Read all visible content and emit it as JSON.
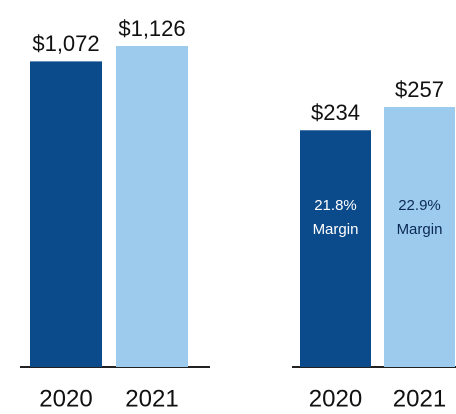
{
  "chart_data": [
    {
      "type": "bar",
      "categories": [
        "2020",
        "2021"
      ],
      "values": [
        1072,
        1126
      ],
      "value_labels": [
        "$1,072",
        "$1,126"
      ],
      "colors": [
        "#0b4a8b",
        "#9ccbee"
      ]
    },
    {
      "type": "bar",
      "categories": [
        "2020",
        "2021"
      ],
      "values": [
        234,
        257
      ],
      "value_labels": [
        "$234",
        "$257"
      ],
      "colors": [
        "#0b4a8b",
        "#9ccbee"
      ],
      "inner_labels": [
        [
          "21.8%",
          "Margin"
        ],
        [
          "22.9%",
          "Margin"
        ]
      ]
    }
  ]
}
